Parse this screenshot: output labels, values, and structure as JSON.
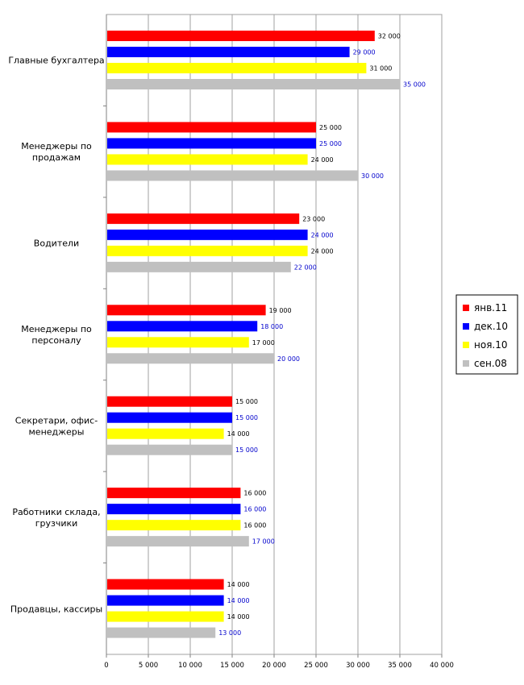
{
  "chart_data": {
    "type": "bar",
    "orientation": "horizontal",
    "categories": [
      "Главные бухгалтера",
      "Менеджеры по продажам",
      "Водители",
      "Менеджеры по персоналу",
      "Секретари, офис-менеджеры",
      "Работники склада, грузчики",
      "Продавцы, кассиры"
    ],
    "series": [
      {
        "name": "янв.11",
        "color": "#ff0000",
        "label_color": "#000000",
        "values": [
          32000,
          25000,
          23000,
          19000,
          15000,
          16000,
          14000
        ]
      },
      {
        "name": "дек.10",
        "color": "#0000ff",
        "label_color": "#0000cc",
        "values": [
          29000,
          25000,
          24000,
          18000,
          15000,
          16000,
          14000
        ]
      },
      {
        "name": "ноя.10",
        "color": "#ffff00",
        "label_color": "#000000",
        "values": [
          31000,
          24000,
          24000,
          17000,
          14000,
          16000,
          14000
        ]
      },
      {
        "name": "сен.08",
        "color": "#c0c0c0",
        "label_color": "#0000cc",
        "values": [
          35000,
          30000,
          22000,
          20000,
          15000,
          17000,
          13000
        ]
      }
    ],
    "xlim": [
      0,
      40000
    ],
    "xticks": [
      0,
      5000,
      10000,
      15000,
      20000,
      25000,
      30000,
      35000,
      40000
    ],
    "xtick_labels": [
      "0",
      "5 000",
      "10 000",
      "15 000",
      "20 000",
      "25 000",
      "30 000",
      "35 000",
      "40 000"
    ],
    "title": "",
    "xlabel": "",
    "ylabel": "",
    "grid": "vertical",
    "legend": "right"
  }
}
